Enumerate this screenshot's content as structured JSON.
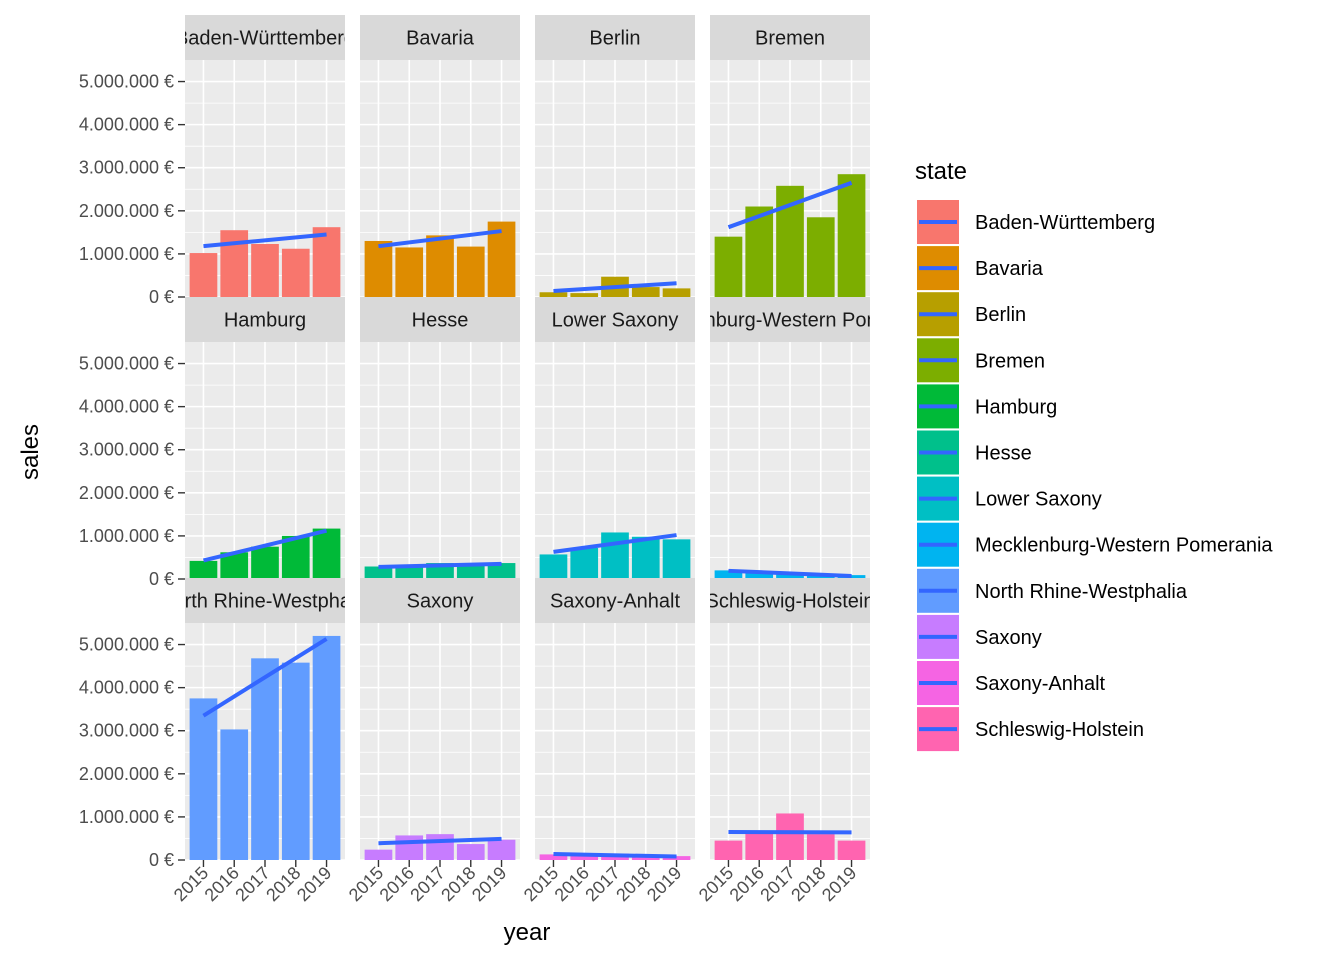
{
  "chart_data": {
    "type": "bar",
    "xlabel": "year",
    "ylabel": "sales",
    "x": [
      "2015",
      "2016",
      "2017",
      "2018",
      "2019"
    ],
    "y_ticks": [
      {
        "value": 0,
        "label": "0 €"
      },
      {
        "value": 1000000,
        "label": "1.000.000 €"
      },
      {
        "value": 2000000,
        "label": "2.000.000 €"
      },
      {
        "value": 3000000,
        "label": "3.000.000 €"
      },
      {
        "value": 4000000,
        "label": "4.000.000 €"
      },
      {
        "value": 5000000,
        "label": "5.000.000 €"
      }
    ],
    "ylim": [
      0,
      5500000
    ],
    "grid": true,
    "trend_line_color": "#3366ff",
    "legend": {
      "title": "state",
      "position": "right"
    },
    "series": [
      {
        "name": "Baden-Württemberg",
        "strip_label": "Baden-Württemberg",
        "color": "#f8766d",
        "values": [
          1020000,
          1550000,
          1230000,
          1120000,
          1620000
        ],
        "trend": [
          1180000,
          1450000
        ]
      },
      {
        "name": "Bavaria",
        "strip_label": "Bavaria",
        "color": "#de8c00",
        "values": [
          1300000,
          1150000,
          1430000,
          1170000,
          1750000
        ],
        "trend": [
          1180000,
          1530000
        ]
      },
      {
        "name": "Berlin",
        "strip_label": "Berlin",
        "color": "#b79f00",
        "values": [
          110000,
          90000,
          470000,
          230000,
          200000
        ],
        "trend": [
          140000,
          320000
        ]
      },
      {
        "name": "Bremen",
        "strip_label": "Bremen",
        "color": "#7cae00",
        "values": [
          1400000,
          2100000,
          2580000,
          1850000,
          2850000
        ],
        "trend": [
          1620000,
          2650000
        ]
      },
      {
        "name": "Hamburg",
        "strip_label": "Hamburg",
        "color": "#00ba38",
        "values": [
          420000,
          620000,
          750000,
          1000000,
          1170000
        ],
        "trend": [
          430000,
          1120000
        ]
      },
      {
        "name": "Hesse",
        "strip_label": "Hesse",
        "color": "#00c08b",
        "values": [
          290000,
          320000,
          370000,
          320000,
          370000
        ],
        "trend": [
          280000,
          350000
        ]
      },
      {
        "name": "Lower Saxony",
        "strip_label": "Lower Saxony",
        "color": "#00bfc4",
        "values": [
          570000,
          720000,
          1080000,
          980000,
          920000
        ],
        "trend": [
          630000,
          1020000
        ]
      },
      {
        "name": "Mecklenburg-Western Pomerania",
        "strip_label": "Mecklenburg-Western Pomerania",
        "color": "#00b4f0",
        "values": [
          200000,
          130000,
          160000,
          110000,
          90000
        ],
        "trend": [
          190000,
          70000
        ]
      },
      {
        "name": "North Rhine-Westphalia",
        "strip_label": "North Rhine-Westphalia",
        "color": "#619cff",
        "values": [
          3750000,
          3030000,
          4680000,
          4580000,
          5200000
        ],
        "trend": [
          3350000,
          5130000
        ]
      },
      {
        "name": "Saxony",
        "strip_label": "Saxony",
        "color": "#c77cff",
        "values": [
          240000,
          570000,
          600000,
          370000,
          470000
        ],
        "trend": [
          390000,
          490000
        ]
      },
      {
        "name": "Saxony-Anhalt",
        "strip_label": "Saxony-Anhalt",
        "color": "#f564e3",
        "values": [
          130000,
          110000,
          150000,
          90000,
          90000
        ],
        "trend": [
          140000,
          80000
        ]
      },
      {
        "name": "Schleswig-Holstein",
        "strip_label": "Schleswig-Holstein",
        "color": "#ff64b0",
        "values": [
          450000,
          620000,
          1080000,
          600000,
          450000
        ],
        "trend": [
          650000,
          640000
        ]
      }
    ]
  }
}
